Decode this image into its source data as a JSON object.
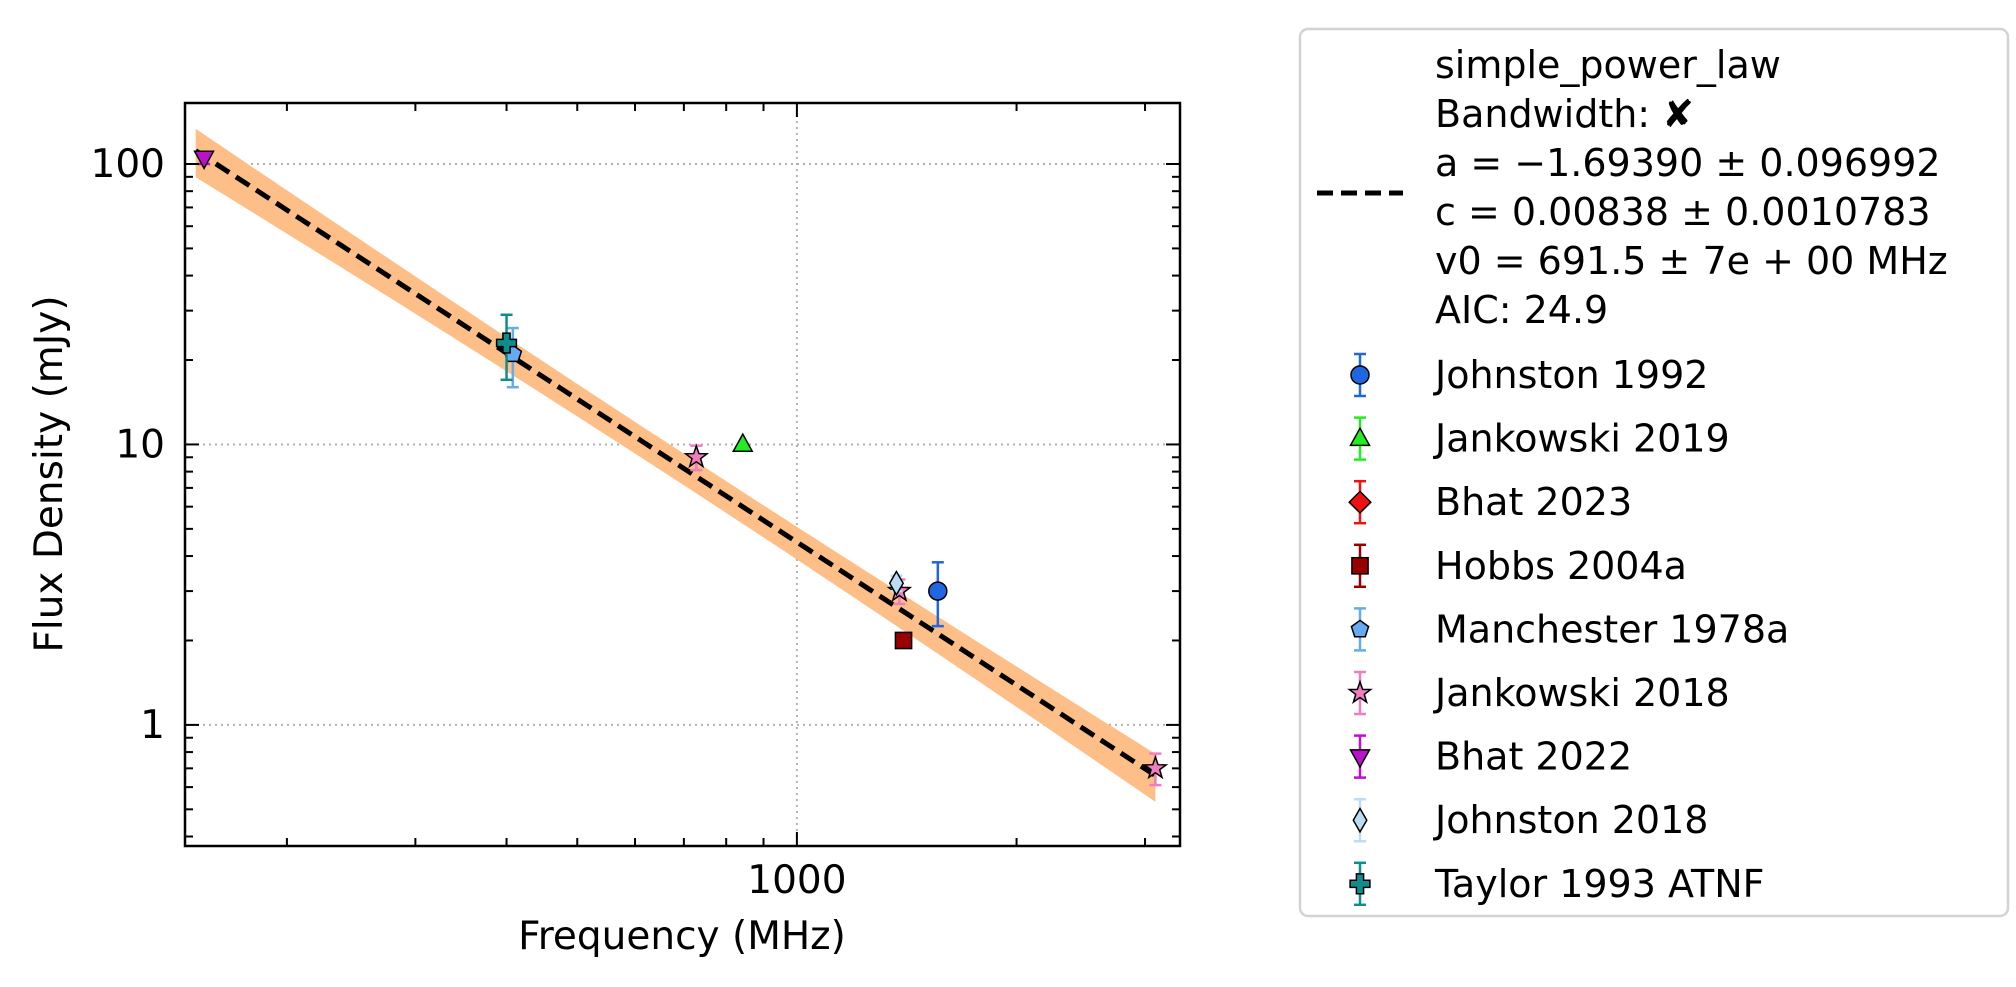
{
  "chart_data": {
    "type": "scatter",
    "xlabel": "Frequency (MHz)",
    "ylabel": "Flux Density (mJy)",
    "xscale": "log",
    "yscale": "log",
    "xlim": [
      145,
      3350
    ],
    "ylim": [
      0.37,
      165
    ],
    "x_ticks": [
      {
        "value": 1000,
        "label": "1000"
      }
    ],
    "y_ticks": [
      {
        "value": 1,
        "label": "1"
      },
      {
        "value": 10,
        "label": "10"
      },
      {
        "value": 100,
        "label": "100"
      }
    ],
    "grid": true,
    "legend_placement": "outside-right",
    "fit": {
      "model": "simple_power_law",
      "lines": [
        "simple_power_law",
        "Bandwidth: ✘",
        "a = −1.69390 ± 0.096992",
        "c = 0.00838 ± 0.0010783",
        "v0 = 691.5 ± 7e + 00 MHz",
        "AIC: 24.9"
      ],
      "a": -1.6939,
      "a_err": 0.096992,
      "c": 0.00838,
      "c_err": 0.0010783,
      "v0": 691.5,
      "x_range": [
        150,
        3100
      ],
      "line_color": "#000000",
      "band_color": "#fdbf87"
    },
    "series": [
      {
        "name": "Johnston 1992",
        "marker": "circle",
        "color": "#1f66e0",
        "points": [
          {
            "x": 1560,
            "y": 3.0,
            "err": [
              0.75,
              0.8
            ]
          }
        ]
      },
      {
        "name": "Jankowski 2019",
        "marker": "triangle-up",
        "color": "#22ee22",
        "points": [
          {
            "x": 843,
            "y": 10.0,
            "err": [
              0,
              0
            ]
          }
        ]
      },
      {
        "name": "Bhat 2023",
        "marker": "diamond",
        "color": "#ee1111",
        "points": []
      },
      {
        "name": "Hobbs 2004a",
        "marker": "square",
        "color": "#990000",
        "points": [
          {
            "x": 1400,
            "y": 2.0,
            "err": [
              0,
              0
            ]
          }
        ]
      },
      {
        "name": "Manchester 1978a",
        "marker": "pentagon",
        "color": "#66aaf0",
        "points": [
          {
            "x": 408,
            "y": 21.0,
            "err": [
              5,
              5
            ]
          }
        ]
      },
      {
        "name": "Jankowski 2018",
        "marker": "star",
        "color": "#f07dbe",
        "points": [
          {
            "x": 728,
            "y": 9.0,
            "err": [
              0.9,
              0.9
            ]
          },
          {
            "x": 1382,
            "y": 3.0,
            "err": [
              0.3,
              0.3
            ]
          },
          {
            "x": 3100,
            "y": 0.7,
            "err": [
              0.09,
              0.09
            ]
          }
        ]
      },
      {
        "name": "Bhat 2022",
        "marker": "triangle-down",
        "color": "#bb11cc",
        "points": [
          {
            "x": 154,
            "y": 105.0,
            "err": [
              5,
              5
            ]
          }
        ]
      },
      {
        "name": "Johnston 2018",
        "marker": "thin-diamond",
        "color": "#bcdcf5",
        "points": [
          {
            "x": 1369,
            "y": 3.2,
            "err": [
              0.2,
              0.2
            ]
          }
        ]
      },
      {
        "name": "Taylor 1993 ATNF",
        "marker": "plus",
        "color": "#118c8c",
        "points": [
          {
            "x": 400,
            "y": 23.0,
            "err": [
              6,
              6
            ]
          }
        ]
      }
    ]
  }
}
